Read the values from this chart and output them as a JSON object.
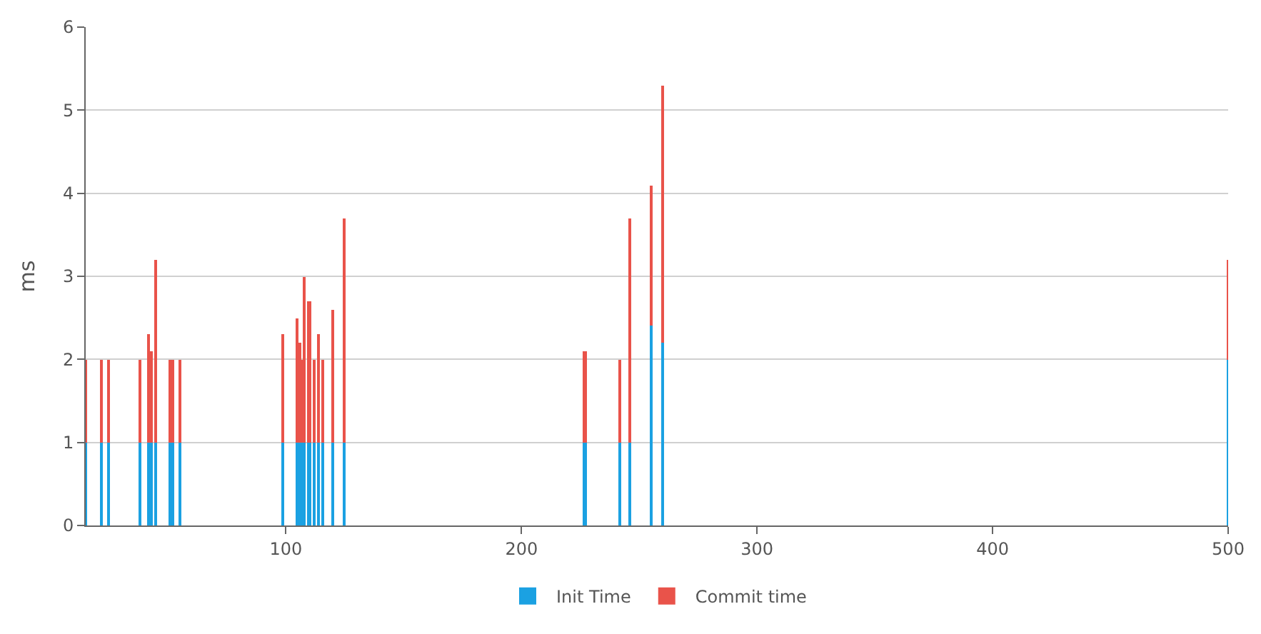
{
  "chart_data": {
    "type": "bar",
    "stacked": true,
    "ylabel": "ms",
    "x": [
      15,
      22,
      25,
      38,
      42,
      43,
      45,
      51,
      52,
      55,
      99,
      105,
      106,
      107,
      108,
      110,
      112,
      114,
      116,
      120,
      125,
      227,
      242,
      246,
      255,
      260,
      500
    ],
    "series": [
      {
        "name": "Init Time",
        "color": "#1ba1e2",
        "values": [
          1,
          1,
          1,
          1,
          1,
          1,
          1,
          1,
          1,
          1,
          1,
          1,
          1,
          1,
          1,
          1,
          1,
          1,
          1,
          1,
          1,
          1,
          1,
          1,
          2.4,
          2.2,
          2.0
        ]
      },
      {
        "name": "Commit time",
        "color": "#e9534a",
        "values": [
          1,
          1,
          1,
          1,
          1.3,
          1.1,
          2.2,
          1,
          1,
          1,
          1.3,
          1.5,
          1.2,
          1,
          2.0,
          1.7,
          1,
          1.3,
          1,
          1.6,
          2.7,
          1.1,
          1,
          2.7,
          1.7,
          3.1,
          1.2
        ]
      }
    ],
    "xlim": [
      15,
      500
    ],
    "xticks": [
      100,
      200,
      300,
      400,
      500
    ],
    "ylim": [
      0,
      6
    ],
    "yticks": [
      0,
      1,
      2,
      3,
      4,
      5,
      6
    ],
    "grid": "y",
    "legend": "bottom"
  }
}
